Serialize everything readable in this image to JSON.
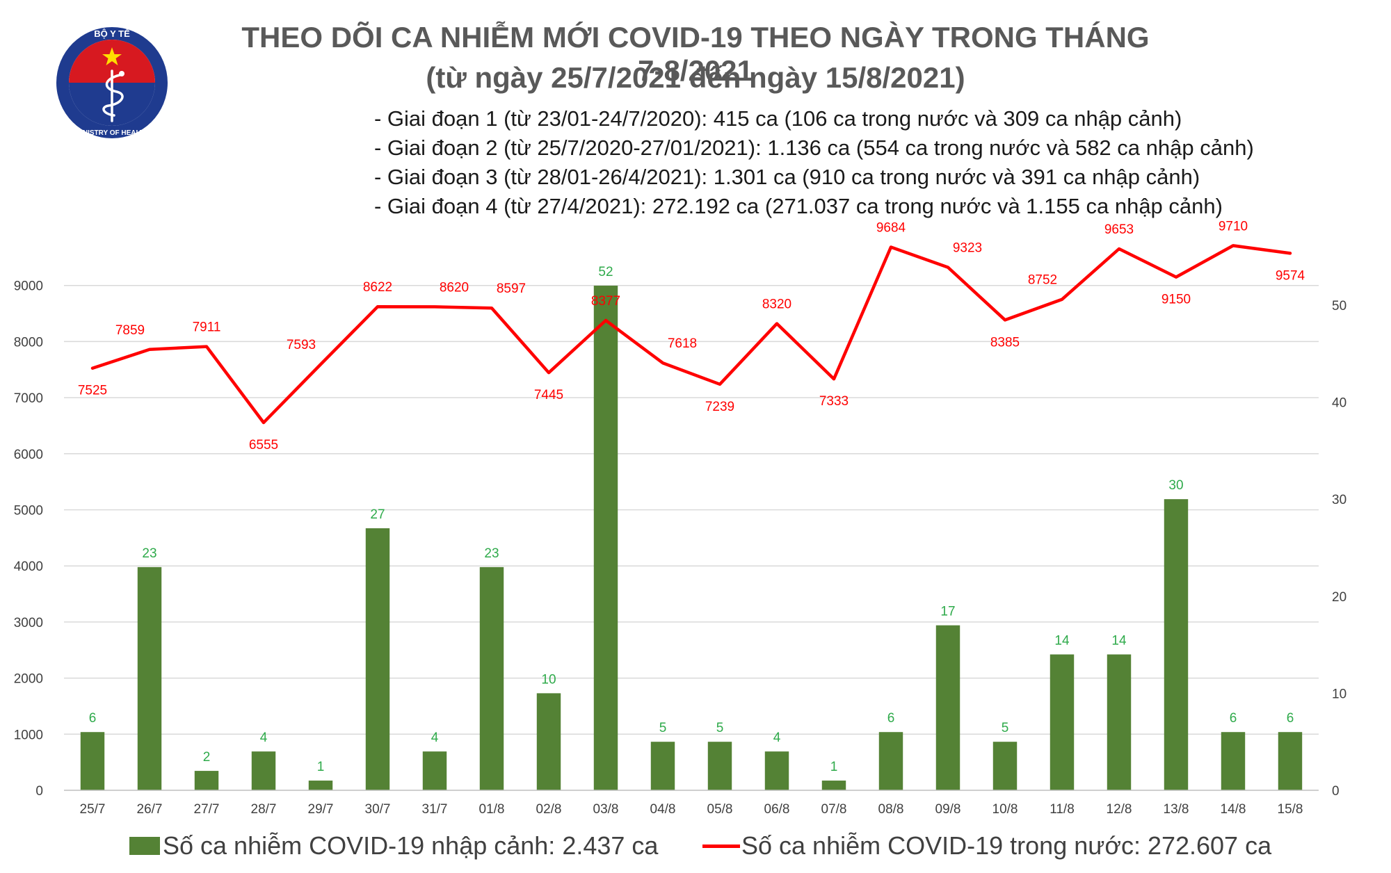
{
  "logo": {
    "top_text": "BỘ Y TẾ",
    "bottom_text": "MINISTRY OF HEALTH",
    "colors": {
      "ring": "#ffffff",
      "blue": "#1f3b8f",
      "red": "#d71920",
      "star": "#ffde00"
    }
  },
  "header": {
    "title": "THEO DÕI CA NHIỄM MỚI COVID-19 THEO NGÀY TRONG THÁNG 7-8/2021",
    "subtitle": "(từ ngày 25/7/2021 đến ngày 15/8/2021)",
    "phases": [
      "- Giai đoạn 1 (từ 23/01-24/7/2020): 415 ca (106 ca trong nước và 309 ca nhập cảnh)",
      "- Giai đoạn 2 (từ 25/7/2020-27/01/2021): 1.136 ca (554 ca trong nước và 582 ca nhập cảnh)",
      "- Giai đoạn 3 (từ 28/01-26/4/2021): 1.301 ca (910 ca trong nước và 391 ca nhập cảnh)",
      "- Giai đoạn 4 (từ 27/4/2021): 272.192 ca (271.037 ca trong nước và 1.155 ca nhập cảnh)"
    ]
  },
  "chart_data": {
    "type": "bar+line",
    "categories": [
      "25/7",
      "26/7",
      "27/7",
      "28/7",
      "29/7",
      "30/7",
      "31/7",
      "01/8",
      "02/8",
      "03/8",
      "04/8",
      "05/8",
      "06/8",
      "07/8",
      "08/8",
      "09/8",
      "10/8",
      "11/8",
      "12/8",
      "13/8",
      "14/8",
      "15/8"
    ],
    "series": [
      {
        "name": "Số ca nhiễm COVID-19 nhập cảnh: 2.437 ca",
        "type": "bar",
        "axis": "right",
        "color": "#548235",
        "values": [
          6,
          23,
          2,
          4,
          1,
          27,
          4,
          23,
          10,
          52,
          5,
          5,
          4,
          1,
          6,
          17,
          5,
          14,
          14,
          30,
          6,
          6
        ]
      },
      {
        "name": "Số ca nhiễm COVID-19 trong nước: 272.607 ca",
        "type": "line",
        "axis": "left",
        "color": "#ff0000",
        "values": [
          7525,
          7859,
          7911,
          6555,
          7593,
          8622,
          8620,
          8597,
          7445,
          8377,
          7618,
          7239,
          8320,
          7333,
          9684,
          9323,
          8385,
          8752,
          9653,
          9150,
          9710,
          9574
        ]
      }
    ],
    "y_left": {
      "min": 0,
      "max": 10000,
      "ticks": [
        0,
        1000,
        2000,
        3000,
        4000,
        5000,
        6000,
        7000,
        8000,
        9000
      ]
    },
    "y_right": {
      "min": 0,
      "max": 57.8,
      "ticks": [
        0,
        10,
        20,
        30,
        40,
        50
      ]
    },
    "grid": true,
    "legend_position": "bottom",
    "label_colors": {
      "bar": "#2eaa4a",
      "line": "#ff0000"
    }
  }
}
